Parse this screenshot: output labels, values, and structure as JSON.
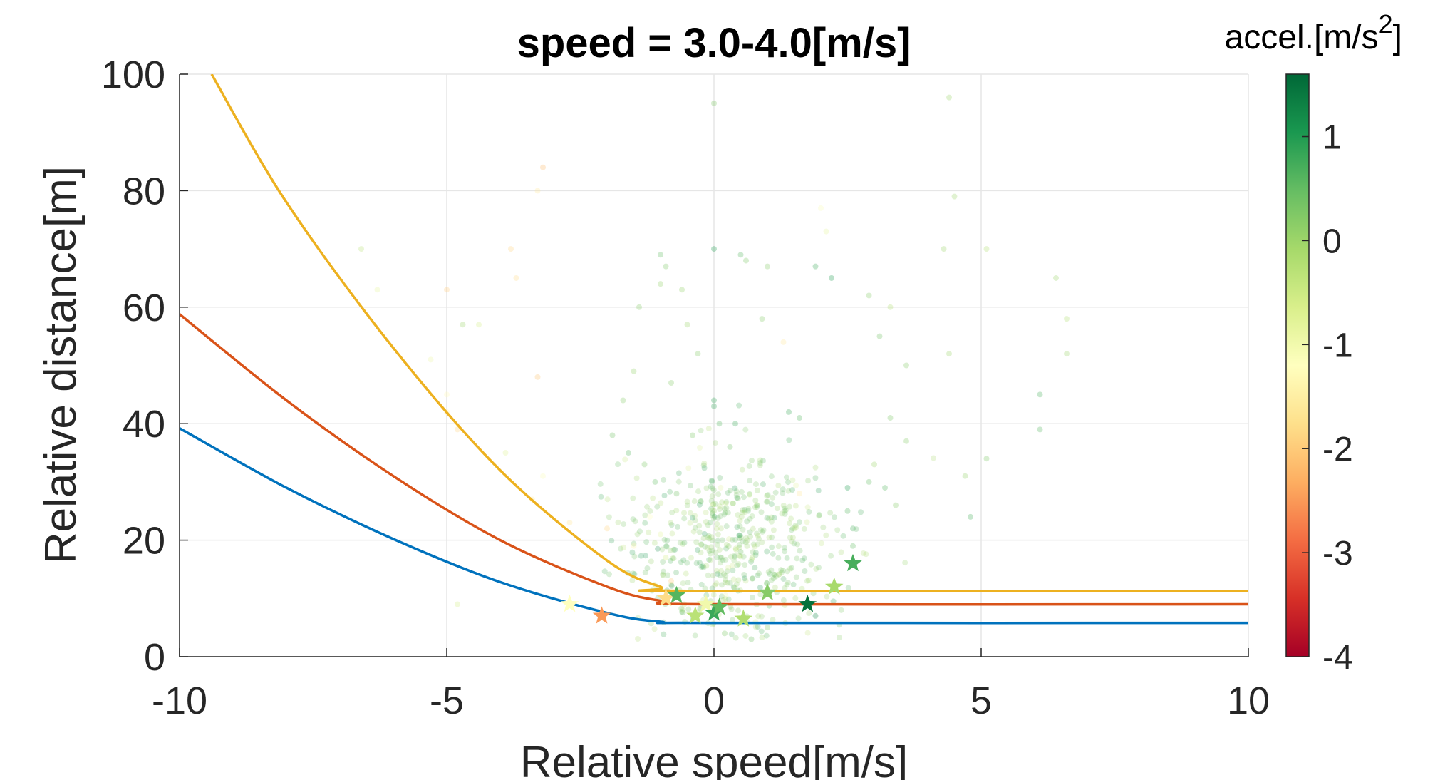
{
  "chart_data": {
    "type": "scatter",
    "title": "speed = 3.0-4.0[m/s]",
    "xlabel": "Relative speed[m/s]",
    "ylabel": "Relative distance[m]",
    "xlim": [
      -10,
      10
    ],
    "ylim": [
      0,
      100
    ],
    "xticks": [
      -10,
      -5,
      0,
      5,
      10
    ],
    "yticks": [
      0,
      20,
      40,
      60,
      80,
      100
    ],
    "grid": true,
    "colorbar": {
      "label": "accel.[m/s",
      "label_superscript": "2",
      "label_suffix": "]",
      "range": [
        -4,
        1.6
      ],
      "ticks": [
        1,
        0,
        -1,
        -2,
        -3,
        -4
      ],
      "colormap": "red-yellow-green",
      "colors": [
        "#a50026",
        "#d73027",
        "#f46d43",
        "#fdae61",
        "#fee08b",
        "#ffffbf",
        "#d9ef8b",
        "#a6d96a",
        "#66bd63",
        "#1a9850",
        "#006837"
      ]
    },
    "curves": [
      {
        "color": "#0072bd",
        "floor": 5.8,
        "points": [
          [
            -10,
            39.2
          ],
          [
            -8,
            29.0
          ],
          [
            -6,
            20.2
          ],
          [
            -4,
            12.8
          ],
          [
            -2,
            7.5
          ],
          [
            -1,
            6.0
          ],
          [
            0,
            5.8
          ],
          [
            10,
            5.8
          ]
        ]
      },
      {
        "color": "#d95319",
        "floor": 9.0,
        "points": [
          [
            -10,
            58.8
          ],
          [
            -8,
            44.0
          ],
          [
            -6,
            31.0
          ],
          [
            -4,
            20.0
          ],
          [
            -2,
            12.0
          ],
          [
            -1,
            9.6
          ],
          [
            0,
            9.0
          ],
          [
            10,
            9.0
          ]
        ]
      },
      {
        "color": "#edb120",
        "floor": 11.3,
        "points": [
          [
            -9.4,
            100
          ],
          [
            -8,
            78.0
          ],
          [
            -6,
            53.0
          ],
          [
            -4,
            32.0
          ],
          [
            -2,
            16.5
          ],
          [
            -1,
            12.0
          ],
          [
            -0.5,
            11.3
          ],
          [
            10,
            11.3
          ]
        ]
      }
    ],
    "stars": [
      {
        "x": -2.7,
        "y": 9.0,
        "a": -1.2
      },
      {
        "x": -2.1,
        "y": 7.0,
        "a": -2.5
      },
      {
        "x": -0.9,
        "y": 10.0,
        "a": -1.8
      },
      {
        "x": -0.7,
        "y": 10.5,
        "a": 0.6
      },
      {
        "x": -0.35,
        "y": 7.0,
        "a": -0.3
      },
      {
        "x": -0.15,
        "y": 9.0,
        "a": -1.0
      },
      {
        "x": 0.0,
        "y": 7.5,
        "a": 0.8
      },
      {
        "x": 0.1,
        "y": 8.5,
        "a": 0.5
      },
      {
        "x": 0.55,
        "y": 6.5,
        "a": -0.2
      },
      {
        "x": 1.0,
        "y": 11.0,
        "a": 0.2
      },
      {
        "x": 1.75,
        "y": 9.0,
        "a": 1.5
      },
      {
        "x": 2.25,
        "y": 12.0,
        "a": -0.1
      },
      {
        "x": 2.6,
        "y": 16.0,
        "a": 0.7
      }
    ],
    "scatter": [
      {
        "x": 0.0,
        "y": 95,
        "a": 0.3
      },
      {
        "x": -3.2,
        "y": 84,
        "a": -2.2
      },
      {
        "x": -3.3,
        "y": 80,
        "a": -1.6
      },
      {
        "x": -3.8,
        "y": 70,
        "a": -1.9
      },
      {
        "x": -3.7,
        "y": 65,
        "a": -1.8
      },
      {
        "x": -6.6,
        "y": 70,
        "a": -0.3
      },
      {
        "x": -6.3,
        "y": 63,
        "a": -0.8
      },
      {
        "x": -5.0,
        "y": 63,
        "a": -2.0
      },
      {
        "x": -4.4,
        "y": 57,
        "a": -0.6
      },
      {
        "x": -4.7,
        "y": 57,
        "a": 0.0
      },
      {
        "x": -5.3,
        "y": 51,
        "a": -0.9
      },
      {
        "x": -3.3,
        "y": 48,
        "a": -2.1
      },
      {
        "x": -5.0,
        "y": 45,
        "a": -1.3
      },
      {
        "x": -5.0,
        "y": 42,
        "a": -1.4
      },
      {
        "x": -4.8,
        "y": 39,
        "a": -1.9
      },
      {
        "x": -4.8,
        "y": 9,
        "a": -0.6
      },
      {
        "x": -3.9,
        "y": 35,
        "a": -0.7
      },
      {
        "x": -3.4,
        "y": 27,
        "a": -1.5
      },
      {
        "x": -3.2,
        "y": 31,
        "a": -1.1
      },
      {
        "x": -2.7,
        "y": 23,
        "a": -1.7
      },
      {
        "x": -2.0,
        "y": 22,
        "a": -1.9
      },
      {
        "x": -1.5,
        "y": 19,
        "a": -1.4
      },
      {
        "x": -1.2,
        "y": 24,
        "a": -1.2
      },
      {
        "x": -1.0,
        "y": 21,
        "a": -0.8
      },
      {
        "x": -0.8,
        "y": 13,
        "a": -2.0
      },
      {
        "x": -0.9,
        "y": 17,
        "a": -0.6
      },
      {
        "x": -0.7,
        "y": 28,
        "a": 0.4
      },
      {
        "x": -1.1,
        "y": 30,
        "a": 0.5
      },
      {
        "x": -1.6,
        "y": 35,
        "a": 0.6
      },
      {
        "x": -1.3,
        "y": 33,
        "a": 0.3
      },
      {
        "x": -1.9,
        "y": 38,
        "a": 0.4
      },
      {
        "x": -1.7,
        "y": 44,
        "a": 0.2
      },
      {
        "x": -1.5,
        "y": 49,
        "a": 0.1
      },
      {
        "x": -1.4,
        "y": 60,
        "a": 0.2
      },
      {
        "x": -1.0,
        "y": 64,
        "a": 0.1
      },
      {
        "x": -1.0,
        "y": 69,
        "a": 0.5
      },
      {
        "x": -0.9,
        "y": 67,
        "a": 0.3
      },
      {
        "x": -0.6,
        "y": 63,
        "a": 0.1
      },
      {
        "x": -0.5,
        "y": 57,
        "a": 0.0
      },
      {
        "x": -0.3,
        "y": 52,
        "a": 0.2
      },
      {
        "x": -0.8,
        "y": 47,
        "a": 0.2
      },
      {
        "x": 0.0,
        "y": 70,
        "a": 1.0
      },
      {
        "x": 0.0,
        "y": 44,
        "a": 0.9
      },
      {
        "x": 0.0,
        "y": 43,
        "a": 0.9
      },
      {
        "x": 0.1,
        "y": 40,
        "a": 0.6
      },
      {
        "x": -0.4,
        "y": 38,
        "a": 0.3
      },
      {
        "x": 0.3,
        "y": 36,
        "a": 0.4
      },
      {
        "x": 0.4,
        "y": 40,
        "a": 0.8
      },
      {
        "x": 0.5,
        "y": 69,
        "a": 0.6
      },
      {
        "x": 0.6,
        "y": 68,
        "a": 0.3
      },
      {
        "x": 1.0,
        "y": 67,
        "a": 0.2
      },
      {
        "x": 0.9,
        "y": 58,
        "a": 0.2
      },
      {
        "x": 1.3,
        "y": 54,
        "a": -1.6
      },
      {
        "x": 1.4,
        "y": 42,
        "a": 0.8
      },
      {
        "x": 1.6,
        "y": 41,
        "a": 0.6
      },
      {
        "x": 1.9,
        "y": 67,
        "a": 0.8
      },
      {
        "x": 2.2,
        "y": 65,
        "a": 1.0
      },
      {
        "x": 2.0,
        "y": 77,
        "a": -1.1
      },
      {
        "x": 2.1,
        "y": 73,
        "a": -0.8
      },
      {
        "x": 2.9,
        "y": 62,
        "a": 0.2
      },
      {
        "x": 3.3,
        "y": 60,
        "a": -0.2
      },
      {
        "x": 3.1,
        "y": 55,
        "a": 0.4
      },
      {
        "x": 3.6,
        "y": 50,
        "a": 0.2
      },
      {
        "x": 3.3,
        "y": 41,
        "a": 0.3
      },
      {
        "x": 3.6,
        "y": 37,
        "a": 0.2
      },
      {
        "x": 3.0,
        "y": 33,
        "a": 0.0
      },
      {
        "x": 2.9,
        "y": 30,
        "a": 0.5
      },
      {
        "x": 3.2,
        "y": 29,
        "a": 0.6
      },
      {
        "x": 3.4,
        "y": 26,
        "a": 0.2
      },
      {
        "x": 4.4,
        "y": 96,
        "a": 0.0
      },
      {
        "x": 4.5,
        "y": 79,
        "a": 0.0
      },
      {
        "x": 4.3,
        "y": 70,
        "a": 0.0
      },
      {
        "x": 5.1,
        "y": 70,
        "a": -0.2
      },
      {
        "x": 4.4,
        "y": 52,
        "a": 0.0
      },
      {
        "x": 4.7,
        "y": 31,
        "a": 0.1
      },
      {
        "x": 5.1,
        "y": 34,
        "a": 0.3
      },
      {
        "x": 4.8,
        "y": 24,
        "a": 0.7
      },
      {
        "x": 6.1,
        "y": 45,
        "a": 0.7
      },
      {
        "x": 6.1,
        "y": 39,
        "a": 0.6
      },
      {
        "x": 6.6,
        "y": 52,
        "a": 0.0
      },
      {
        "x": 6.6,
        "y": 58,
        "a": -0.2
      },
      {
        "x": 6.4,
        "y": 65,
        "a": 0.0
      },
      {
        "x": 1.9,
        "y": 7,
        "a": 1.2
      },
      {
        "x": 2.6,
        "y": 19,
        "a": 0.5
      },
      {
        "x": 2.6,
        "y": 22,
        "a": 0.7
      },
      {
        "x": 2.5,
        "y": 25,
        "a": 0.6
      },
      {
        "x": 2.5,
        "y": 29,
        "a": 1.0
      },
      {
        "x": 1.6,
        "y": 28,
        "a": -1.6
      },
      {
        "x": 0.5,
        "y": 18,
        "a": 0.4
      },
      {
        "x": 0.2,
        "y": 4,
        "a": 0.3
      },
      {
        "x": 0.7,
        "y": 3,
        "a": 0.4
      },
      {
        "x": 1.0,
        "y": 5,
        "a": 0.2
      }
    ],
    "cluster": {
      "center_x": 0.3,
      "center_y": 19,
      "spread_x": 1.0,
      "spread_y": 7.5,
      "count": 520,
      "mean_a": 0.25,
      "spread_a": 0.35
    }
  }
}
